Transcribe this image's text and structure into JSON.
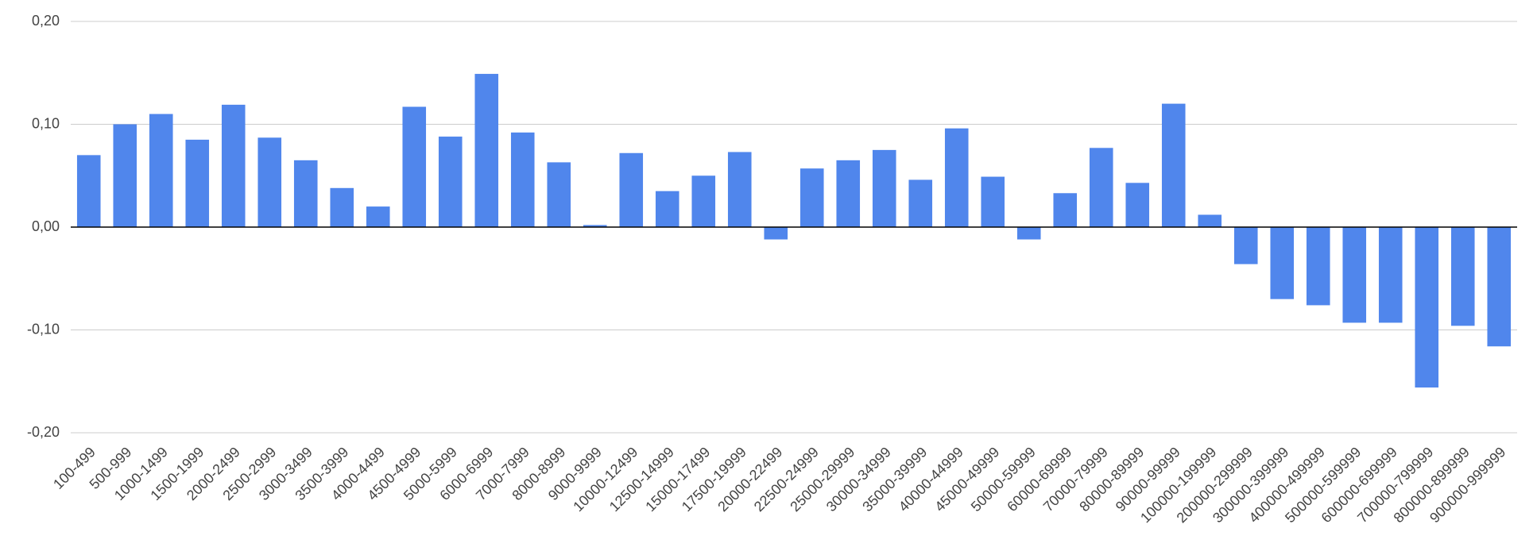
{
  "chart_data": {
    "type": "bar",
    "categories": [
      "100-499",
      "500-999",
      "1000-1499",
      "1500-1999",
      "2000-2499",
      "2500-2999",
      "3000-3499",
      "3500-3999",
      "4000-4499",
      "4500-4999",
      "5000-5999",
      "6000-6999",
      "7000-7999",
      "8000-8999",
      "9000-9999",
      "10000-12499",
      "12500-14999",
      "15000-17499",
      "17500-19999",
      "20000-22499",
      "22500-24999",
      "25000-29999",
      "30000-34999",
      "35000-39999",
      "40000-44999",
      "45000-49999",
      "50000-59999",
      "60000-69999",
      "70000-79999",
      "80000-89999",
      "90000-99999",
      "100000-199999",
      "200000-299999",
      "300000-399999",
      "400000-499999",
      "500000-599999",
      "600000-699999",
      "700000-799999",
      "800000-899999",
      "900000-999999"
    ],
    "values": [
      0.07,
      0.1,
      0.11,
      0.085,
      0.119,
      0.087,
      0.065,
      0.038,
      0.02,
      0.117,
      0.088,
      0.149,
      0.092,
      0.063,
      0.002,
      0.072,
      0.035,
      0.05,
      0.073,
      -0.012,
      0.057,
      0.065,
      0.075,
      0.046,
      0.096,
      0.049,
      -0.012,
      0.033,
      0.077,
      0.043,
      0.12,
      0.012,
      -0.036,
      -0.07,
      -0.076,
      -0.093,
      -0.093,
      -0.156,
      -0.096,
      -0.116
    ],
    "color": "#5086ec",
    "ylim": [
      -0.2,
      0.2
    ],
    "yticks": [
      {
        "value": -0.2,
        "label": "-0,20"
      },
      {
        "value": -0.1,
        "label": "-0,10"
      },
      {
        "value": 0,
        "label": "0,00"
      },
      {
        "value": 0.1,
        "label": "0,10"
      },
      {
        "value": 0.2,
        "label": "0,20"
      }
    ],
    "grid": true
  }
}
